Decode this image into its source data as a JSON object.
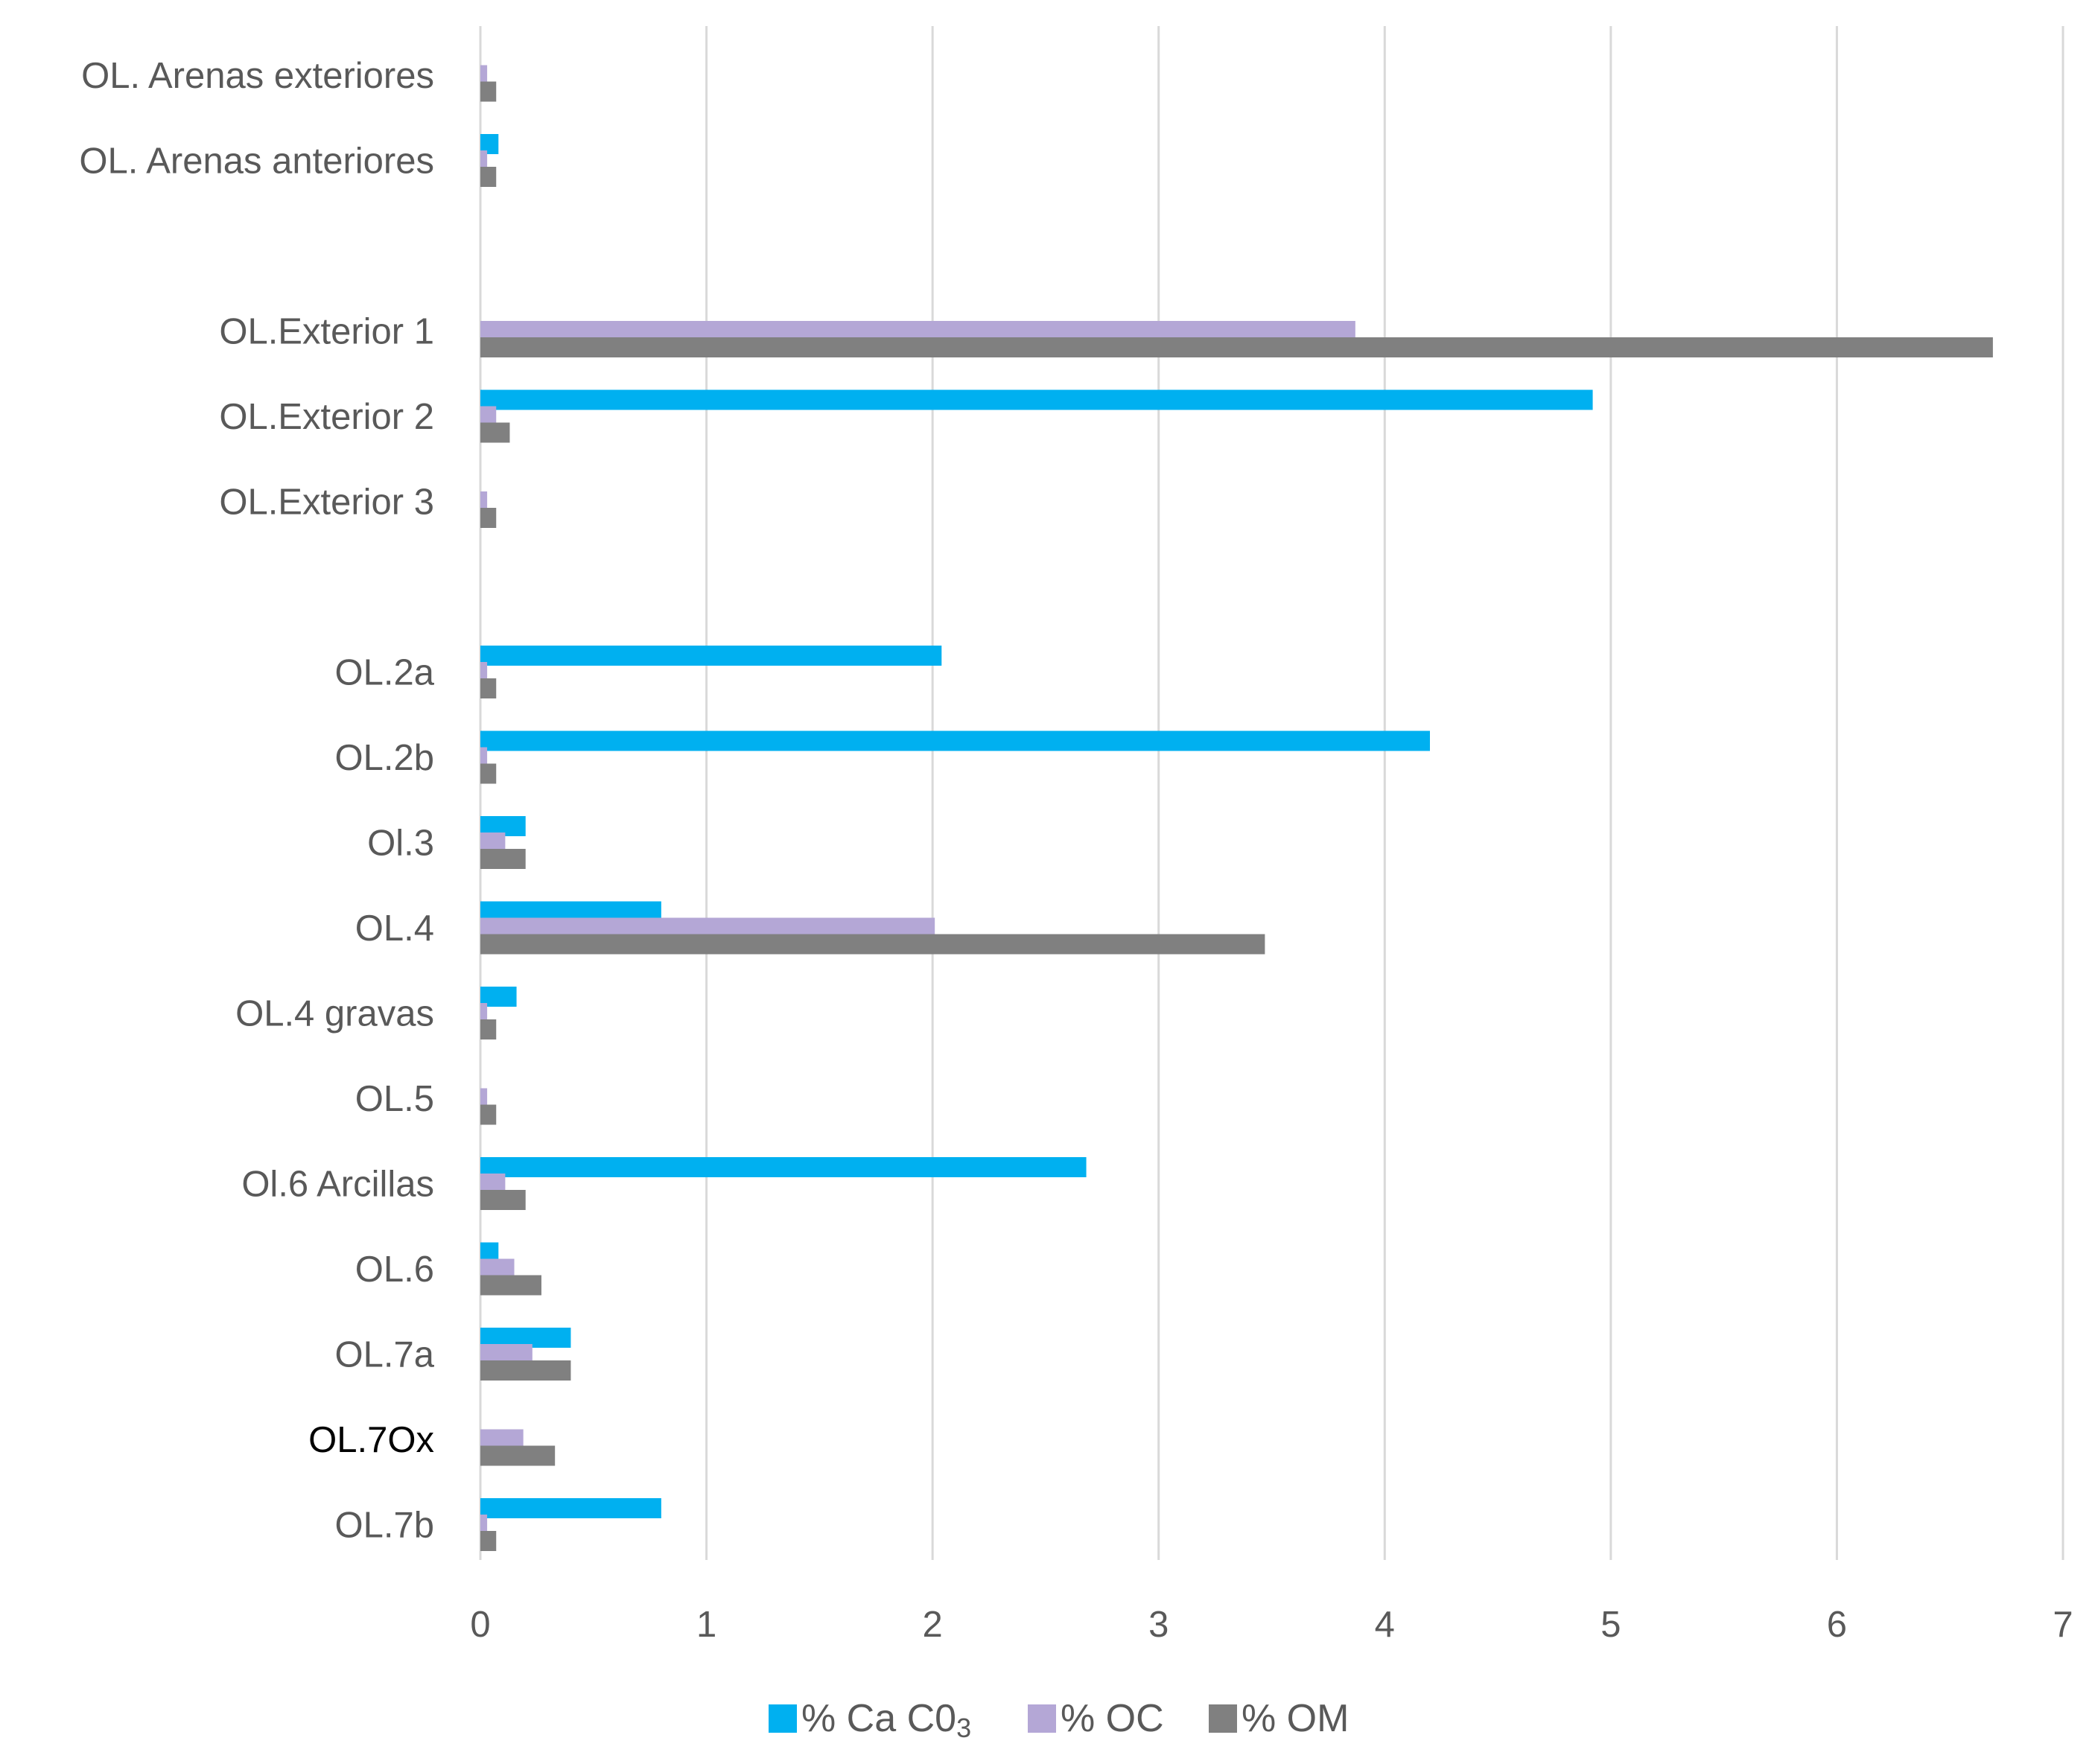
{
  "chart_data": {
    "type": "bar",
    "orientation": "horizontal",
    "title": "",
    "xlabel": "",
    "ylabel": "",
    "xlim": [
      0,
      7
    ],
    "x_ticks": [
      0,
      1,
      2,
      3,
      4,
      5,
      6,
      7
    ],
    "grid": "vertical",
    "legend_position": "bottom",
    "categories": [
      "OL. Arenas exteriores",
      "OL. Arenas anteriores",
      "",
      "OL.Exterior 1",
      "OL.Exterior 2",
      "OL.Exterior 3",
      "",
      "OL.2a",
      "OL.2b",
      "Ol.3",
      "OL.4",
      "OL.4 gravas",
      "OL.5",
      "Ol.6 Arcillas",
      "OL.6",
      "OL.7a",
      "OL.7Ox",
      "OL.7b"
    ],
    "series": [
      {
        "name": "% Ca C0",
        "name_subscript": "3",
        "color": "#00b0f0",
        "values": [
          0,
          0.08,
          null,
          0,
          4.92,
          0,
          null,
          2.04,
          4.2,
          0.2,
          0.8,
          0.16,
          0,
          2.68,
          0.08,
          0.4,
          0,
          0.8
        ]
      },
      {
        "name": "% OC",
        "color": "#b4a7d6",
        "values": [
          0.03,
          0.03,
          null,
          3.87,
          0.07,
          0.03,
          null,
          0.03,
          0.03,
          0.11,
          2.01,
          0.03,
          0.03,
          0.11,
          0.15,
          0.23,
          0.19,
          0.03
        ]
      },
      {
        "name": "% OM",
        "color": "#808080",
        "values": [
          0.07,
          0.07,
          null,
          6.69,
          0.13,
          0.07,
          null,
          0.07,
          0.07,
          0.2,
          3.47,
          0.07,
          0.07,
          0.2,
          0.27,
          0.4,
          0.33,
          0.07
        ]
      }
    ]
  }
}
